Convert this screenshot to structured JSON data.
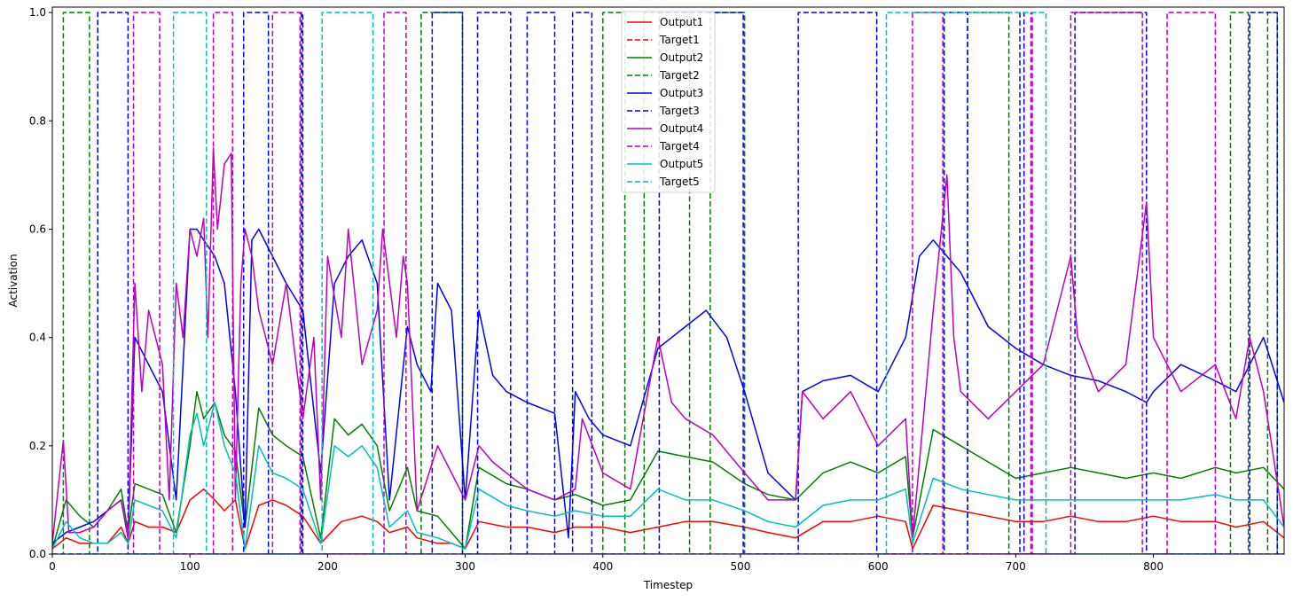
{
  "chart_data": {
    "type": "line",
    "title": "",
    "xlabel": "Timestep",
    "ylabel": "Activation",
    "xlim": [
      0,
      895
    ],
    "ylim": [
      0,
      1.01
    ],
    "x_ticks": [
      0,
      100,
      200,
      300,
      400,
      500,
      600,
      700,
      800
    ],
    "y_ticks": [
      0.0,
      0.2,
      0.4,
      0.6,
      0.8,
      1.0
    ],
    "x_tick_labels": [
      "0",
      "100",
      "200",
      "300",
      "400",
      "500",
      "600",
      "700",
      "800"
    ],
    "y_tick_labels": [
      "0.0",
      "0.2",
      "0.4",
      "0.6",
      "0.8",
      "1.0"
    ],
    "grid": false,
    "legend_position": "top-center",
    "series": [
      {
        "name": "Output1",
        "color": "#ff0000",
        "style": "solid",
        "x": [
          0,
          10,
          20,
          30,
          40,
          50,
          55,
          60,
          70,
          80,
          90,
          100,
          110,
          118,
          125,
          133,
          140,
          150,
          160,
          170,
          182,
          195,
          210,
          225,
          236,
          245,
          258,
          265,
          280,
          290,
          300,
          310,
          330,
          345,
          365,
          380,
          400,
          420,
          440,
          460,
          480,
          503,
          520,
          540,
          560,
          580,
          600,
          620,
          625,
          640,
          660,
          680,
          700,
          720,
          740,
          760,
          780,
          800,
          820,
          845,
          860,
          880,
          895
        ],
        "y": [
          0.01,
          0.03,
          0.02,
          0.02,
          0.02,
          0.05,
          0.02,
          0.06,
          0.05,
          0.05,
          0.04,
          0.1,
          0.12,
          0.1,
          0.08,
          0.1,
          0.01,
          0.09,
          0.1,
          0.09,
          0.07,
          0.02,
          0.06,
          0.07,
          0.06,
          0.04,
          0.05,
          0.03,
          0.02,
          0.02,
          0.01,
          0.06,
          0.05,
          0.05,
          0.04,
          0.05,
          0.05,
          0.04,
          0.05,
          0.06,
          0.06,
          0.05,
          0.04,
          0.03,
          0.06,
          0.06,
          0.07,
          0.06,
          0.01,
          0.09,
          0.08,
          0.07,
          0.06,
          0.06,
          0.07,
          0.06,
          0.06,
          0.07,
          0.06,
          0.06,
          0.05,
          0.06,
          0.03
        ]
      },
      {
        "name": "Target1",
        "color": "#ff0000",
        "style": "dashed",
        "segments": []
      },
      {
        "name": "Output2",
        "color": "#008000",
        "style": "solid",
        "x": [
          0,
          10,
          20,
          30,
          40,
          50,
          55,
          60,
          70,
          80,
          90,
          100,
          105,
          110,
          118,
          125,
          133,
          140,
          150,
          160,
          170,
          182,
          195,
          205,
          215,
          225,
          236,
          245,
          258,
          265,
          280,
          290,
          300,
          310,
          330,
          345,
          365,
          380,
          400,
          420,
          440,
          460,
          480,
          503,
          520,
          540,
          560,
          580,
          600,
          620,
          625,
          640,
          660,
          680,
          700,
          720,
          740,
          760,
          780,
          800,
          820,
          845,
          860,
          880,
          895
        ],
        "y": [
          0.01,
          0.1,
          0.07,
          0.05,
          0.08,
          0.12,
          0.04,
          0.13,
          0.12,
          0.11,
          0.04,
          0.2,
          0.3,
          0.25,
          0.28,
          0.22,
          0.19,
          0.05,
          0.27,
          0.22,
          0.2,
          0.18,
          0.03,
          0.25,
          0.22,
          0.24,
          0.2,
          0.08,
          0.16,
          0.08,
          0.07,
          0.04,
          0.01,
          0.16,
          0.13,
          0.12,
          0.1,
          0.11,
          0.09,
          0.1,
          0.19,
          0.18,
          0.17,
          0.13,
          0.11,
          0.1,
          0.15,
          0.17,
          0.15,
          0.18,
          0.03,
          0.23,
          0.2,
          0.17,
          0.14,
          0.15,
          0.16,
          0.15,
          0.14,
          0.15,
          0.14,
          0.16,
          0.15,
          0.16,
          0.12
        ]
      },
      {
        "name": "Target2",
        "color": "#008000",
        "style": "dashed",
        "segments": [
          [
            8,
            27
          ],
          [
            268,
            298
          ],
          [
            400,
            416
          ],
          [
            430,
            463
          ],
          [
            478,
            503
          ],
          [
            665,
            695
          ],
          [
            856,
            869
          ],
          [
            883,
            890
          ]
        ]
      },
      {
        "name": "Output3",
        "color": "#0000ff",
        "style": "solid",
        "x": [
          0,
          10,
          20,
          30,
          40,
          50,
          55,
          60,
          70,
          80,
          90,
          100,
          105,
          110,
          118,
          125,
          133,
          140,
          145,
          150,
          160,
          170,
          182,
          195,
          205,
          215,
          225,
          236,
          245,
          258,
          265,
          275,
          280,
          290,
          300,
          310,
          320,
          330,
          345,
          365,
          375,
          380,
          390,
          400,
          420,
          440,
          460,
          475,
          490,
          503,
          520,
          540,
          545,
          560,
          580,
          600,
          620,
          630,
          640,
          650,
          660,
          680,
          700,
          720,
          740,
          760,
          780,
          795,
          800,
          820,
          845,
          860,
          870,
          880,
          895
        ],
        "y": [
          0.02,
          0.04,
          0.05,
          0.06,
          0.08,
          0.1,
          0.03,
          0.4,
          0.35,
          0.3,
          0.1,
          0.6,
          0.6,
          0.58,
          0.55,
          0.5,
          0.3,
          0.05,
          0.58,
          0.6,
          0.55,
          0.5,
          0.45,
          0.15,
          0.5,
          0.55,
          0.58,
          0.5,
          0.1,
          0.42,
          0.35,
          0.3,
          0.5,
          0.45,
          0.1,
          0.45,
          0.33,
          0.3,
          0.28,
          0.26,
          0.03,
          0.3,
          0.25,
          0.22,
          0.2,
          0.38,
          0.42,
          0.45,
          0.4,
          0.3,
          0.15,
          0.1,
          0.3,
          0.32,
          0.33,
          0.3,
          0.4,
          0.55,
          0.58,
          0.55,
          0.52,
          0.42,
          0.38,
          0.35,
          0.33,
          0.32,
          0.3,
          0.28,
          0.3,
          0.35,
          0.32,
          0.3,
          0.35,
          0.4,
          0.28
        ]
      },
      {
        "name": "Target3",
        "color": "#0000ff",
        "style": "dashed",
        "segments": [
          [
            33,
            55
          ],
          [
            139,
            157
          ],
          [
            181,
            182
          ],
          [
            276,
            298
          ],
          [
            309,
            333
          ],
          [
            345,
            365
          ],
          [
            378,
            392
          ],
          [
            441,
            502
          ],
          [
            542,
            599
          ],
          [
            648,
            665
          ],
          [
            703,
            706
          ],
          [
            743,
            795
          ],
          [
            870,
            890
          ]
        ]
      },
      {
        "name": "Output4",
        "color": "#bf00bf",
        "style": "solid",
        "x": [
          0,
          8,
          12,
          20,
          30,
          40,
          50,
          55,
          60,
          65,
          70,
          75,
          80,
          85,
          90,
          95,
          100,
          105,
          110,
          113,
          117,
          120,
          125,
          130,
          133,
          137,
          140,
          145,
          150,
          155,
          160,
          170,
          182,
          190,
          195,
          200,
          210,
          215,
          225,
          236,
          240,
          250,
          255,
          258,
          265,
          280,
          290,
          300,
          310,
          320,
          330,
          345,
          365,
          380,
          385,
          400,
          420,
          440,
          450,
          460,
          480,
          503,
          520,
          540,
          545,
          560,
          580,
          600,
          620,
          625,
          640,
          650,
          655,
          660,
          680,
          700,
          720,
          740,
          745,
          760,
          780,
          795,
          800,
          820,
          845,
          860,
          870,
          880,
          895
        ],
        "y": [
          0.02,
          0.21,
          0.04,
          0.04,
          0.05,
          0.08,
          0.1,
          0.03,
          0.5,
          0.3,
          0.45,
          0.4,
          0.35,
          0.1,
          0.5,
          0.4,
          0.6,
          0.55,
          0.62,
          0.4,
          0.75,
          0.6,
          0.72,
          0.74,
          0.1,
          0.5,
          0.6,
          0.55,
          0.45,
          0.4,
          0.35,
          0.5,
          0.25,
          0.4,
          0.1,
          0.55,
          0.4,
          0.6,
          0.35,
          0.45,
          0.6,
          0.4,
          0.55,
          0.5,
          0.08,
          0.2,
          0.15,
          0.1,
          0.2,
          0.17,
          0.15,
          0.12,
          0.1,
          0.12,
          0.25,
          0.15,
          0.12,
          0.4,
          0.28,
          0.25,
          0.22,
          0.15,
          0.1,
          0.1,
          0.3,
          0.25,
          0.3,
          0.2,
          0.25,
          0.03,
          0.45,
          0.7,
          0.4,
          0.3,
          0.25,
          0.3,
          0.35,
          0.55,
          0.4,
          0.3,
          0.35,
          0.65,
          0.4,
          0.3,
          0.35,
          0.25,
          0.4,
          0.3,
          0.05
        ]
      },
      {
        "name": "Target4",
        "color": "#bf00bf",
        "style": "dashed",
        "segments": [
          [
            59,
            78
          ],
          [
            117,
            131
          ],
          [
            160,
            180
          ],
          [
            241,
            257
          ],
          [
            625,
            647
          ],
          [
            711,
            712
          ],
          [
            740,
            792
          ],
          [
            810,
            845
          ]
        ]
      },
      {
        "name": "Output5",
        "color": "#00bfbf",
        "style": "solid",
        "x": [
          0,
          10,
          20,
          30,
          40,
          50,
          55,
          60,
          70,
          80,
          90,
          100,
          105,
          110,
          118,
          125,
          133,
          140,
          150,
          160,
          170,
          182,
          195,
          205,
          215,
          225,
          236,
          245,
          258,
          265,
          280,
          290,
          300,
          310,
          330,
          345,
          365,
          380,
          400,
          420,
          440,
          460,
          480,
          503,
          520,
          540,
          560,
          580,
          600,
          620,
          625,
          640,
          660,
          680,
          700,
          720,
          740,
          760,
          780,
          800,
          820,
          845,
          860,
          880,
          895
        ],
        "y": [
          0.01,
          0.06,
          0.03,
          0.02,
          0.02,
          0.04,
          0.02,
          0.1,
          0.09,
          0.08,
          0.03,
          0.22,
          0.26,
          0.2,
          0.28,
          0.2,
          0.15,
          0.01,
          0.2,
          0.15,
          0.14,
          0.12,
          0.02,
          0.2,
          0.18,
          0.2,
          0.16,
          0.05,
          0.08,
          0.04,
          0.03,
          0.02,
          0.01,
          0.12,
          0.09,
          0.08,
          0.07,
          0.08,
          0.07,
          0.07,
          0.12,
          0.1,
          0.1,
          0.08,
          0.06,
          0.05,
          0.09,
          0.1,
          0.1,
          0.12,
          0.02,
          0.14,
          0.12,
          0.11,
          0.1,
          0.1,
          0.1,
          0.1,
          0.1,
          0.1,
          0.1,
          0.11,
          0.1,
          0.1,
          0.05
        ]
      },
      {
        "name": "Target5",
        "color": "#00bfbf",
        "style": "dashed",
        "segments": [
          [
            88,
            112
          ],
          [
            196,
            233
          ],
          [
            606,
            722
          ]
        ]
      }
    ]
  }
}
